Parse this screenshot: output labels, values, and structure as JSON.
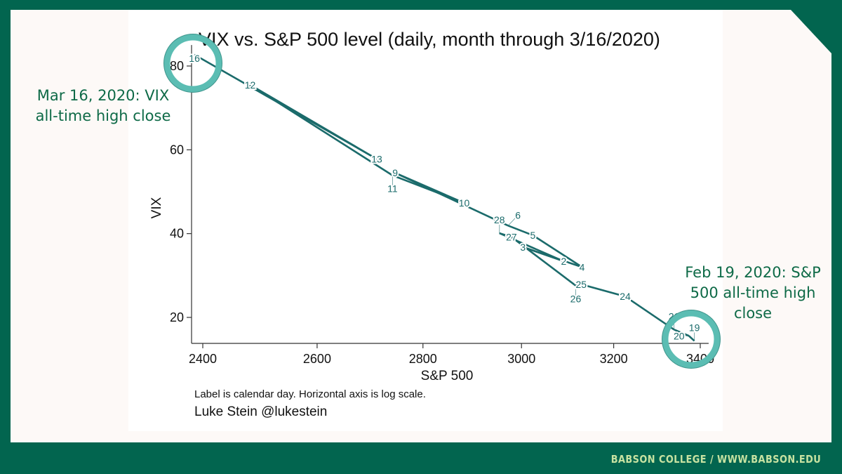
{
  "slide": {
    "footer_text": "BABSON COLLEGE  /  WWW.BABSON.EDU",
    "colors": {
      "brand_green": "#02654f",
      "footer_text": "#c7e2a1",
      "callout_text": "#0e6a47",
      "ring": "#5bbdb3",
      "series": "#1b6b6b"
    }
  },
  "callouts": {
    "left": {
      "line1": "Mar 16, 2020: VIX",
      "line2": "all-time high close"
    },
    "right": {
      "line1": "Feb 19, 2020: S&P",
      "line2": "500 all-time high",
      "line3": "close"
    }
  },
  "notes": {
    "caption": "Label is calendar day. Horizontal axis is log scale.",
    "author": "Luke Stein @lukestein"
  },
  "chart_data": {
    "type": "line",
    "title": "VIX vs. S&P 500 level (daily, month through 3/16/2020)",
    "xlabel": "S&P 500",
    "ylabel": "VIX",
    "xscale": "log",
    "xlim": [
      2380,
      3420
    ],
    "ylim": [
      14,
      84
    ],
    "xticks": [
      2400,
      2600,
      2800,
      3000,
      3200,
      3400
    ],
    "yticks": [
      20,
      40,
      60,
      80
    ],
    "grid": false,
    "points": [
      {
        "label": "19",
        "x": 3386,
        "y": 14.4
      },
      {
        "label": "20",
        "x": 3373,
        "y": 15.6
      },
      {
        "label": "21",
        "x": 3338,
        "y": 17.1
      },
      {
        "label": "24",
        "x": 3226,
        "y": 25.0
      },
      {
        "label": "25",
        "x": 3128,
        "y": 27.9
      },
      {
        "label": "26",
        "x": 3116,
        "y": 27.6
      },
      {
        "label": "27",
        "x": 2979,
        "y": 39.2
      },
      {
        "label": "28",
        "x": 2954,
        "y": 40.1
      },
      {
        "label": "2",
        "x": 3090,
        "y": 33.4
      },
      {
        "label": "3",
        "x": 3003,
        "y": 36.8
      },
      {
        "label": "4",
        "x": 3130,
        "y": 32.0
      },
      {
        "label": "5",
        "x": 3024,
        "y": 39.6
      },
      {
        "label": "6",
        "x": 2972,
        "y": 41.9
      },
      {
        "label": "9",
        "x": 2746,
        "y": 54.5
      },
      {
        "label": "10",
        "x": 2882,
        "y": 47.3
      },
      {
        "label": "11",
        "x": 2741,
        "y": 53.9
      },
      {
        "label": "12",
        "x": 2481,
        "y": 75.5
      },
      {
        "label": "13",
        "x": 2711,
        "y": 57.8
      },
      {
        "label": "16",
        "x": 2386,
        "y": 82.7
      }
    ],
    "highlights": [
      {
        "label": "16",
        "note": "VIX all-time high close"
      },
      {
        "label": "19",
        "note": "S&P 500 all-time high close"
      }
    ]
  }
}
